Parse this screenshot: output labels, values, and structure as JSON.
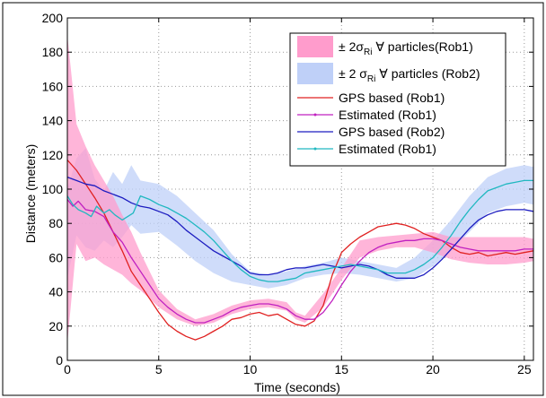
{
  "chart_data": {
    "type": "line",
    "xlabel": "Time (seconds)",
    "ylabel": "Distance (meters)",
    "xlim": [
      0,
      25.5
    ],
    "ylim": [
      0,
      200
    ],
    "xticks": [
      0,
      5,
      10,
      15,
      20,
      25
    ],
    "yticks": [
      0,
      20,
      40,
      60,
      80,
      100,
      120,
      140,
      160,
      180,
      200
    ],
    "xtick_labels": [
      "0",
      "5",
      "10",
      "15",
      "20",
      "25"
    ],
    "ytick_labels": [
      "0",
      "20",
      "40",
      "60",
      "80",
      "100",
      "120",
      "140",
      "160",
      "180",
      "200"
    ],
    "grid": true,
    "legend_position": "top-right",
    "bands": [
      {
        "name_main": "± 2σ",
        "name_sub": "Ri",
        "name_rest": " ∀ particles(Rob1)",
        "color": "#ff9ccc",
        "x": [
          0,
          0.5,
          1,
          1.5,
          2,
          2.5,
          3,
          3.5,
          4,
          5,
          6,
          7,
          8,
          9,
          10,
          11,
          12,
          12.5,
          13,
          14,
          15,
          16,
          17,
          18,
          19,
          20,
          21,
          22,
          23,
          24,
          25,
          25.5
        ],
        "lower": [
          10,
          68,
          58,
          60,
          56,
          53,
          50,
          45,
          41,
          31,
          24,
          20,
          22,
          27,
          30,
          31,
          29,
          24,
          22,
          31,
          47,
          60,
          64,
          66,
          66,
          63,
          59,
          57,
          56,
          56,
          57,
          58
        ],
        "upper": [
          190,
          138,
          125,
          114,
          105,
          96,
          85,
          75,
          63,
          41,
          30,
          24,
          27,
          32,
          35,
          36,
          34,
          28,
          26,
          39,
          54,
          70,
          72,
          73,
          74,
          75,
          72,
          72,
          72,
          72,
          72,
          71
        ]
      },
      {
        "name_main": "± 2 σ",
        "name_sub": "Ri",
        "name_rest": " ∀ particles (Rob2)",
        "color": "#bfd0f8",
        "x": [
          0,
          0.5,
          1,
          1.5,
          2,
          2.5,
          3,
          3.5,
          4,
          5,
          6,
          7,
          8,
          9,
          10,
          11,
          12,
          13,
          14,
          15,
          16,
          17,
          18,
          19,
          20,
          21,
          22,
          23,
          24,
          25,
          25.5
        ],
        "lower": [
          48,
          73,
          66,
          64,
          70,
          66,
          72,
          79,
          74,
          75,
          67,
          58,
          51,
          46,
          44,
          42,
          44,
          48,
          50,
          51,
          50,
          48,
          46,
          48,
          55,
          64,
          75,
          86,
          90,
          92,
          91
        ],
        "upper": [
          100,
          118,
          124,
          106,
          99,
          110,
          103,
          114,
          105,
          103,
          96,
          86,
          76,
          62,
          52,
          50,
          52,
          55,
          57,
          60,
          58,
          56,
          54,
          60,
          70,
          82,
          96,
          107,
          112,
          114,
          113
        ]
      }
    ],
    "series": [
      {
        "name": "GPS based (Rob1)",
        "color": "#e02020",
        "x": [
          0,
          0.5,
          1,
          1.5,
          2,
          2.5,
          3,
          3.5,
          4,
          4.5,
          5,
          5.5,
          6,
          6.5,
          7,
          7.5,
          8,
          8.5,
          9,
          9.5,
          10,
          10.5,
          11,
          11.5,
          12,
          12.5,
          13,
          13.5,
          14,
          14.5,
          15,
          15.5,
          16,
          16.5,
          17,
          17.5,
          18,
          18.5,
          19,
          19.5,
          20,
          20.5,
          21,
          21.5,
          22,
          22.5,
          23,
          23.5,
          24,
          24.5,
          25,
          25.5
        ],
        "y": [
          117,
          111,
          103,
          95,
          86,
          75,
          64,
          52,
          44,
          36,
          28,
          21,
          17,
          14,
          12,
          14,
          17,
          20,
          24,
          25,
          27,
          28,
          26,
          27,
          24,
          21,
          20,
          23,
          32,
          50,
          63,
          68,
          72,
          75,
          78,
          79,
          80,
          79,
          77,
          74,
          72,
          70,
          66,
          63,
          62,
          63,
          61,
          62,
          63,
          62,
          63,
          64
        ]
      },
      {
        "name": "Estimated (Rob1)",
        "color": "#c020c0",
        "x": [
          0,
          0.3,
          0.6,
          1,
          1.5,
          2,
          2.5,
          3,
          3.5,
          4,
          4.5,
          5,
          5.5,
          6,
          6.5,
          7,
          7.5,
          8,
          8.5,
          9,
          9.5,
          10,
          10.5,
          11,
          11.5,
          12,
          12.5,
          13,
          13.5,
          14,
          14.5,
          15,
          15.5,
          16,
          16.5,
          17,
          17.5,
          18,
          18.5,
          19,
          19.5,
          20,
          20.5,
          21,
          21.5,
          22,
          22.5,
          23,
          23.5,
          24,
          24.5,
          25,
          25.5
        ],
        "y": [
          94,
          90,
          93,
          88,
          87,
          84,
          75,
          69,
          60,
          52,
          44,
          36,
          31,
          27,
          24,
          22,
          22,
          24,
          26,
          29,
          31,
          32,
          33,
          33,
          32,
          30,
          26,
          24,
          24,
          28,
          35,
          44,
          52,
          58,
          63,
          66,
          68,
          69,
          70,
          70,
          71,
          71,
          70,
          68,
          66,
          65,
          64,
          64,
          64,
          64,
          64,
          65,
          65
        ]
      },
      {
        "name": "GPS based (Rob2)",
        "color": "#1c1cc0",
        "x": [
          0,
          0.5,
          1,
          1.5,
          2,
          2.5,
          3,
          3.5,
          4,
          4.5,
          5,
          5.5,
          6,
          6.5,
          7,
          7.5,
          8,
          8.5,
          9,
          9.5,
          10,
          10.5,
          11,
          11.5,
          12,
          12.5,
          13,
          13.5,
          14,
          14.5,
          15,
          15.5,
          16,
          16.5,
          17,
          17.5,
          18,
          18.5,
          19,
          19.5,
          20,
          20.5,
          21,
          21.5,
          22,
          22.5,
          23,
          23.5,
          24,
          24.5,
          25,
          25.5
        ],
        "y": [
          107,
          105,
          103,
          102,
          99,
          97,
          95,
          92,
          90,
          89,
          87,
          85,
          81,
          76,
          72,
          68,
          64,
          61,
          58,
          55,
          51,
          50,
          50,
          51,
          53,
          54,
          54,
          55,
          56,
          55,
          54,
          55,
          56,
          55,
          53,
          50,
          48,
          48,
          48,
          50,
          54,
          59,
          65,
          71,
          77,
          82,
          85,
          87,
          88,
          88,
          88,
          87
        ]
      },
      {
        "name": "Estimated (Rob1)",
        "color": "#20b8c0",
        "x": [
          0,
          0.3,
          0.6,
          1,
          1.3,
          1.6,
          2,
          2.3,
          2.6,
          3,
          3.3,
          3.6,
          4,
          4.5,
          5,
          5.5,
          6,
          6.5,
          7,
          7.5,
          8,
          8.5,
          9,
          9.5,
          10,
          10.5,
          11,
          11.5,
          12,
          12.5,
          13,
          13.5,
          14,
          14.5,
          15,
          15.5,
          16,
          16.5,
          17,
          17.5,
          18,
          18.5,
          19,
          19.5,
          20,
          20.5,
          21,
          21.5,
          22,
          22.5,
          23,
          23.5,
          24,
          24.5,
          25,
          25.5
        ],
        "y": [
          96,
          91,
          88,
          86,
          84,
          90,
          86,
          88,
          85,
          82,
          84,
          86,
          96,
          94,
          91,
          89,
          86,
          83,
          79,
          75,
          70,
          64,
          58,
          53,
          49,
          47,
          46,
          46,
          47,
          48,
          51,
          52,
          53,
          54,
          55,
          56,
          55,
          54,
          53,
          51,
          51,
          51,
          53,
          56,
          60,
          66,
          73,
          81,
          88,
          94,
          99,
          101,
          103,
          104,
          105,
          105
        ]
      }
    ]
  }
}
